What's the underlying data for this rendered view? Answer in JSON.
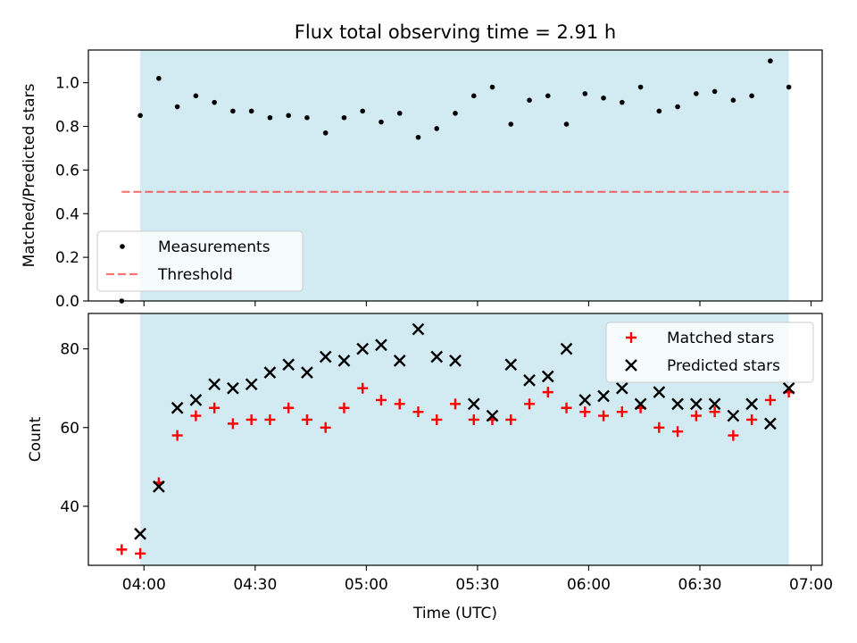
{
  "figure_title": "Flux total observing time = 2.91 h",
  "xlabel": "Time (UTC)",
  "colors": {
    "shade": "#add8e6",
    "measurement": "#000000",
    "threshold": "#ff0000",
    "matched": "#ff0000",
    "predicted": "#000000"
  },
  "chart_data": [
    {
      "type": "scatter",
      "title": "Flux total observing time = 2.91 h",
      "xlabel": "",
      "ylabel": "Matched/Predicted stars",
      "xlim": [
        "03:45",
        "07:03"
      ],
      "ylim": [
        0,
        1.15
      ],
      "xticks": [
        "04:00",
        "04:30",
        "05:00",
        "05:30",
        "06:00",
        "06:30",
        "07:00"
      ],
      "yticks": [
        "0.0",
        "0.2",
        "0.4",
        "0.6",
        "0.8",
        "1.0"
      ],
      "shaded_interval": [
        "03:59",
        "06:54"
      ],
      "legend_position": "lower-left",
      "legend": [
        "Measurements",
        "Threshold"
      ],
      "threshold": {
        "name": "Threshold",
        "y": 0.5,
        "x_range": [
          "03:54",
          "06:54"
        ],
        "style": "dashed"
      },
      "series": [
        {
          "name": "Measurements",
          "marker": "dot",
          "x": [
            "03:54",
            "03:59",
            "04:04",
            "04:09",
            "04:14",
            "04:19",
            "04:24",
            "04:29",
            "04:34",
            "04:39",
            "04:44",
            "04:49",
            "04:54",
            "04:59",
            "05:04",
            "05:09",
            "05:14",
            "05:19",
            "05:24",
            "05:29",
            "05:34",
            "05:39",
            "05:44",
            "05:49",
            "05:54",
            "05:59",
            "06:04",
            "06:09",
            "06:14",
            "06:19",
            "06:24",
            "06:29",
            "06:34",
            "06:39",
            "06:44",
            "06:49",
            "06:54"
          ],
          "y": [
            0.0,
            0.85,
            1.02,
            0.89,
            0.94,
            0.91,
            0.87,
            0.87,
            0.84,
            0.85,
            0.84,
            0.77,
            0.84,
            0.87,
            0.82,
            0.86,
            0.75,
            0.79,
            0.86,
            0.94,
            0.98,
            0.81,
            0.92,
            0.94,
            0.81,
            0.95,
            0.93,
            0.91,
            0.98,
            0.87,
            0.89,
            0.95,
            0.96,
            0.92,
            0.94,
            1.1,
            0.98
          ]
        }
      ]
    },
    {
      "type": "scatter",
      "title": "",
      "xlabel": "Time (UTC)",
      "ylabel": "Count",
      "xlim": [
        "03:45",
        "07:03"
      ],
      "ylim": [
        25,
        89
      ],
      "xticks": [
        "04:00",
        "04:30",
        "05:00",
        "05:30",
        "06:00",
        "06:30",
        "07:00"
      ],
      "yticks": [
        "40",
        "60",
        "80"
      ],
      "shaded_interval": [
        "03:59",
        "06:54"
      ],
      "legend_position": "top-right",
      "legend": [
        "Matched stars",
        "Predicted stars"
      ],
      "series": [
        {
          "name": "Matched stars",
          "marker": "plus",
          "x": [
            "03:54",
            "03:59",
            "04:04",
            "04:09",
            "04:14",
            "04:19",
            "04:24",
            "04:29",
            "04:34",
            "04:39",
            "04:44",
            "04:49",
            "04:54",
            "04:59",
            "05:04",
            "05:09",
            "05:14",
            "05:19",
            "05:24",
            "05:29",
            "05:34",
            "05:39",
            "05:44",
            "05:49",
            "05:54",
            "05:59",
            "06:04",
            "06:09",
            "06:14",
            "06:19",
            "06:24",
            "06:29",
            "06:34",
            "06:39",
            "06:44",
            "06:49",
            "06:54"
          ],
          "y": [
            29,
            28,
            46,
            58,
            63,
            65,
            61,
            62,
            62,
            65,
            62,
            60,
            65,
            70,
            67,
            66,
            64,
            62,
            66,
            62,
            62,
            62,
            66,
            69,
            65,
            64,
            63,
            64,
            65,
            60,
            59,
            63,
            64,
            58,
            62,
            67,
            69
          ]
        },
        {
          "name": "Predicted stars",
          "marker": "x",
          "x": [
            "03:59",
            "04:04",
            "04:09",
            "04:14",
            "04:19",
            "04:24",
            "04:29",
            "04:34",
            "04:39",
            "04:44",
            "04:49",
            "04:54",
            "04:59",
            "05:04",
            "05:09",
            "05:14",
            "05:19",
            "05:24",
            "05:29",
            "05:34",
            "05:39",
            "05:44",
            "05:49",
            "05:54",
            "05:59",
            "06:04",
            "06:09",
            "06:14",
            "06:19",
            "06:24",
            "06:29",
            "06:34",
            "06:39",
            "06:44",
            "06:49",
            "06:54"
          ],
          "y": [
            33,
            45,
            65,
            67,
            71,
            70,
            71,
            74,
            76,
            74,
            78,
            77,
            80,
            81,
            77,
            85,
            78,
            77,
            66,
            63,
            76,
            72,
            73,
            80,
            67,
            68,
            70,
            66,
            69,
            66,
            66,
            66,
            63,
            66,
            61,
            70
          ]
        }
      ]
    }
  ]
}
